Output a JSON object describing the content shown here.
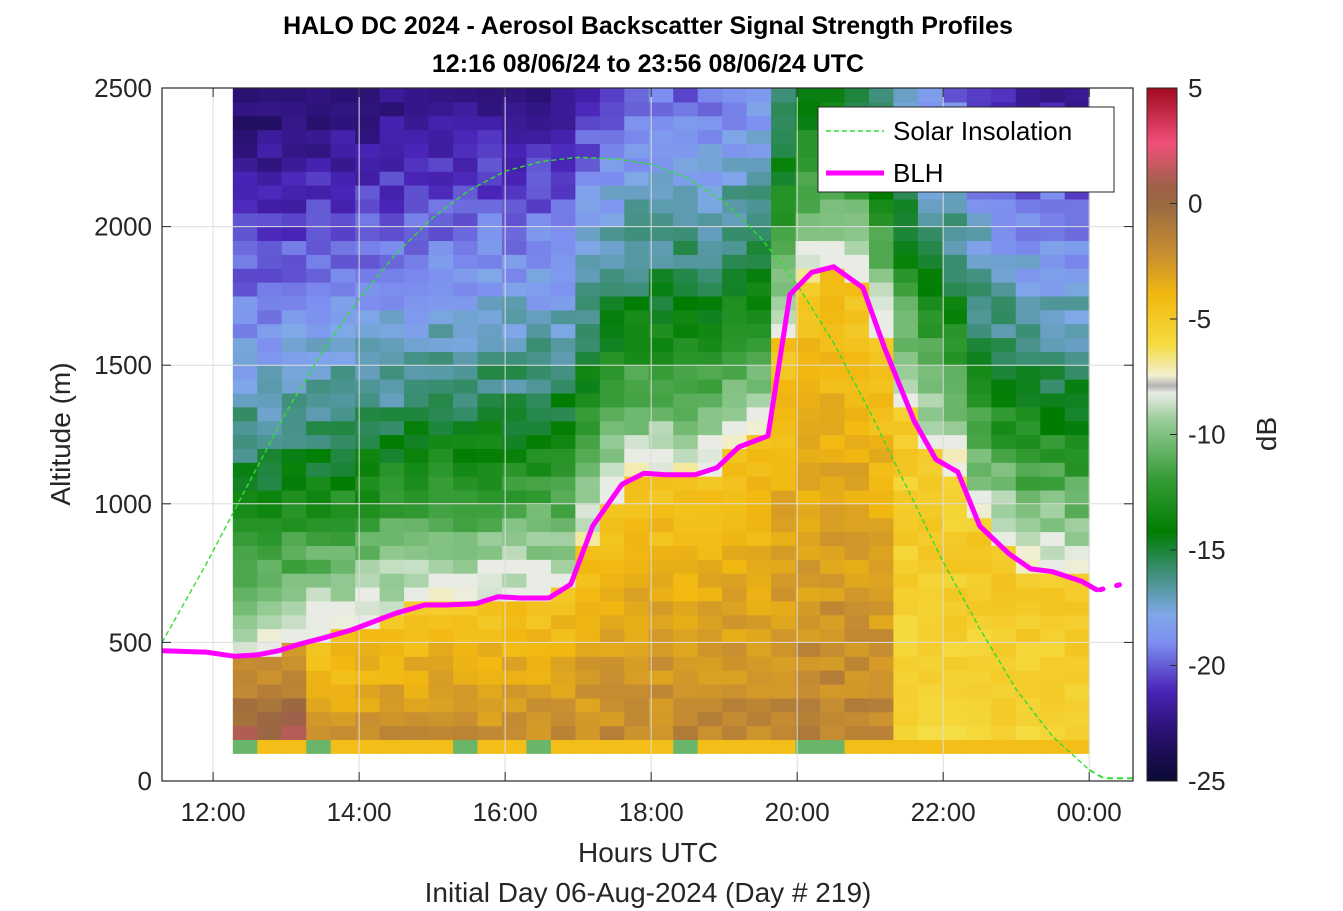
{
  "chart_data": {
    "type": "heatmap",
    "title": "HALO DC 2024 - Aerosol Backscatter Signal Strength Profiles",
    "subtitle": "12:16 08/06/24 to 23:56 08/06/24  UTC",
    "xlabel": "Hours UTC",
    "ylabel": "Altitude (m)",
    "footer": "Initial Day 06-Aug-2024 (Day # 219)",
    "colorbar_label": "dB",
    "xlim": [
      11.3,
      24.6
    ],
    "ylim": [
      0,
      2500
    ],
    "x_ticks": [
      12,
      14,
      16,
      18,
      20,
      22,
      24
    ],
    "x_tick_labels": [
      "12:00",
      "14:00",
      "16:00",
      "18:00",
      "20:00",
      "22:00",
      "00:00"
    ],
    "y_ticks": [
      0,
      500,
      1000,
      1500,
      2000,
      2500
    ],
    "y_tick_labels": [
      "0",
      "500",
      "1000",
      "1500",
      "2000",
      "2500"
    ],
    "colorbar_range": [
      -25,
      5
    ],
    "colorbar_ticks": [
      5,
      0,
      -5,
      -10,
      -15,
      -20,
      -25
    ],
    "colorbar_tick_labels": [
      "5",
      "0",
      "-5",
      "-10",
      "-15",
      "-20",
      "-25"
    ],
    "grid": true,
    "legend_position": "top-right",
    "heatmap_extent": {
      "x_start": 12.27,
      "x_end": 24.0,
      "y_start": 100,
      "y_end": 2500
    },
    "series": [
      {
        "name": "Solar Insolation",
        "style": "dashed",
        "color": "#33dd33",
        "x": [
          11.3,
          11.9,
          12.5,
          13.0,
          13.5,
          14.0,
          14.5,
          15.0,
          15.5,
          16.0,
          16.5,
          17.0,
          17.5,
          18.0,
          18.5,
          19.0,
          19.5,
          20.0,
          20.5,
          21.0,
          21.5,
          22.0,
          22.5,
          23.0,
          23.5,
          24.0,
          24.2,
          24.6
        ],
        "y": [
          500,
          780,
          1080,
          1330,
          1550,
          1740,
          1900,
          2030,
          2130,
          2200,
          2235,
          2250,
          2245,
          2225,
          2175,
          2090,
          1960,
          1790,
          1580,
          1330,
          1060,
          790,
          550,
          330,
          160,
          40,
          10,
          10
        ]
      },
      {
        "name": "BLH",
        "style": "solid",
        "color": "#ff00ff",
        "x": [
          11.3,
          11.9,
          12.3,
          12.6,
          12.9,
          13.2,
          13.5,
          13.9,
          14.2,
          14.5,
          14.9,
          15.2,
          15.6,
          15.9,
          16.2,
          16.6,
          16.9,
          17.2,
          17.6,
          17.9,
          18.2,
          18.6,
          18.9,
          19.2,
          19.6,
          19.9,
          20.2,
          20.5,
          20.9,
          21.2,
          21.6,
          21.9,
          22.2,
          22.5,
          22.9,
          23.2,
          23.5,
          23.9,
          24.1
        ],
        "y": [
          470,
          465,
          450,
          455,
          470,
          495,
          515,
          545,
          575,
          605,
          635,
          635,
          640,
          665,
          660,
          660,
          710,
          920,
          1070,
          1110,
          1105,
          1105,
          1130,
          1205,
          1245,
          1755,
          1835,
          1855,
          1780,
          1560,
          1300,
          1160,
          1115,
          920,
          820,
          765,
          755,
          720,
          690
        ],
        "extra_segment": {
          "x": [
            24.15,
            24.6
          ],
          "y": [
            690,
            720
          ]
        }
      }
    ]
  }
}
